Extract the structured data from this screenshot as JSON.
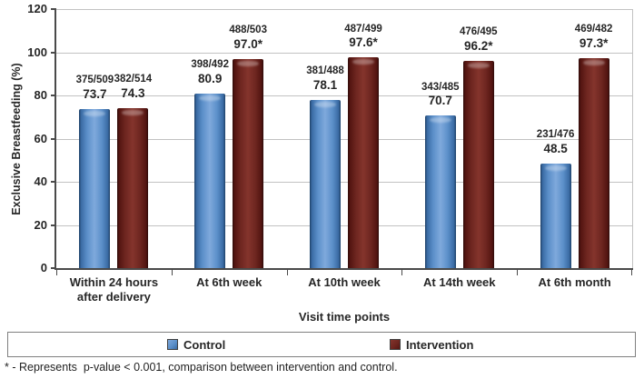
{
  "chart_data": {
    "type": "bar",
    "title": "",
    "xlabel": "Visit time points",
    "ylabel": "Exclusive Breastfeeding (%)",
    "ylim": [
      0,
      120
    ],
    "ytick_step": 20,
    "grid": true,
    "legend_position": "bottom",
    "categories": [
      "Within 24 hours after delivery",
      "At 6th week",
      "At 10th week",
      "At 14th week",
      "At 6th month"
    ],
    "series": [
      {
        "name": "Control",
        "values": [
          73.7,
          80.9,
          78.1,
          70.7,
          48.5
        ],
        "fractions": [
          "375/509",
          "398/492",
          "381/488",
          "343/485",
          "231/476"
        ],
        "value_labels": [
          "73.7",
          "80.9",
          "78.1",
          "70.7",
          "48.5"
        ],
        "colors": {
          "main": "#5b8fc9",
          "hi": "#7fa9dc",
          "mid": "#3a6ba4",
          "edge": "#1e4066"
        }
      },
      {
        "name": "Intervention",
        "values": [
          74.3,
          97.0,
          97.6,
          96.2,
          97.3
        ],
        "fractions": [
          "382/514",
          "488/503",
          "487/499",
          "476/495",
          "469/482"
        ],
        "value_labels": [
          "74.3",
          "97.0*",
          "97.6*",
          "96.2*",
          "97.3*"
        ],
        "colors": {
          "main": "#6e2620",
          "hi": "#84342c",
          "mid": "#541511",
          "edge": "#2e0b09"
        }
      }
    ],
    "footnote": "* - Represents  p-value < 0.001, comparison between intervention and control."
  }
}
